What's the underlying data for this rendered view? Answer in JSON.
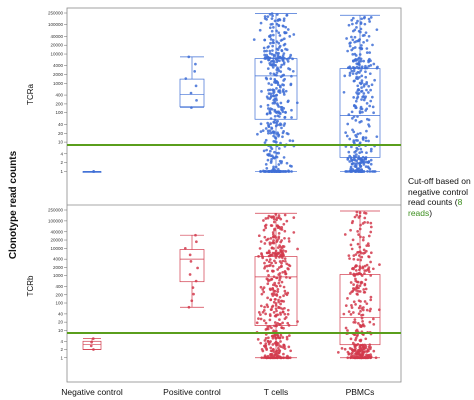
{
  "chart_data": {
    "type": "box",
    "ylabel": "Clonotype read counts",
    "categories": [
      "Negative control",
      "Positive control",
      "T cells",
      "PBMCs"
    ],
    "y_scale": "log",
    "grid": false,
    "cutoff": 8,
    "cutoff_color": "#5a9e1c",
    "panels": [
      {
        "name": "TCRa",
        "color": "#3f6fd6",
        "ylim": [
          0.7,
          250000
        ],
        "tick_labels": [
          "1",
          "2",
          "4",
          "10",
          "20",
          "40",
          "100",
          "200",
          "400",
          "1000",
          "2000",
          "4000",
          "10000",
          "20000",
          "40000",
          "100000",
          "250000"
        ],
        "tick_values": [
          1,
          2,
          4,
          10,
          20,
          40,
          100,
          200,
          400,
          1000,
          2000,
          4000,
          10000,
          20000,
          40000,
          100000,
          250000
        ],
        "boxes": [
          {
            "category": "Negative control",
            "min": 1,
            "q1": 1,
            "median": 1,
            "q3": 1,
            "max": 1,
            "n": 2
          },
          {
            "category": "Positive control",
            "min": 150,
            "q1": 160,
            "median": 420,
            "q3": 1400,
            "max": 8000,
            "n": 8
          },
          {
            "category": "T cells",
            "min": 1,
            "q1": 60,
            "median": 1800,
            "q3": 7000,
            "max": 240000,
            "n": 420
          },
          {
            "category": "PBMCs",
            "min": 1,
            "q1": 3,
            "median": 80,
            "q3": 3200,
            "max": 210000,
            "n": 340
          }
        ]
      },
      {
        "name": "TCRb",
        "color": "#d23a4c",
        "ylim": [
          0.7,
          250000
        ],
        "tick_labels": [
          "1",
          "2",
          "4",
          "10",
          "20",
          "40",
          "100",
          "200",
          "400",
          "1000",
          "2000",
          "4000",
          "10000",
          "20000",
          "40000",
          "100000",
          "250000"
        ],
        "tick_values": [
          1,
          2,
          4,
          10,
          20,
          40,
          100,
          200,
          400,
          1000,
          2000,
          4000,
          10000,
          20000,
          40000,
          100000,
          250000
        ],
        "boxes": [
          {
            "category": "Negative control",
            "min": 2,
            "q1": 2,
            "median": 3,
            "q3": 4,
            "max": 5,
            "n": 4
          },
          {
            "category": "Positive control",
            "min": 70,
            "q1": 600,
            "median": 4000,
            "q3": 9000,
            "max": 30000,
            "n": 12
          },
          {
            "category": "T cells",
            "min": 1,
            "q1": 15,
            "median": 900,
            "q3": 5000,
            "max": 190000,
            "n": 430
          },
          {
            "category": "PBMCs",
            "min": 1,
            "q1": 3,
            "median": 30,
            "q3": 1100,
            "max": 230000,
            "n": 330
          }
        ]
      }
    ],
    "annotation": {
      "text_before": "Cut-off based on negative control read counts (",
      "highlight": "8 reads",
      "text_after": ")"
    }
  }
}
